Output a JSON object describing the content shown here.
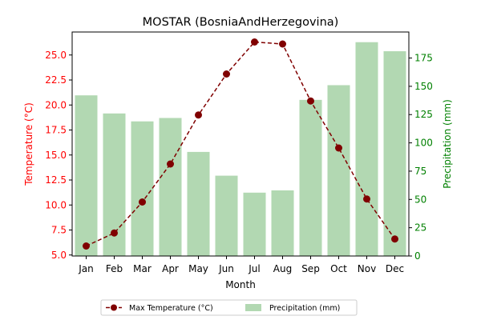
{
  "chart_data": {
    "type": "bar+line",
    "title": "MOSTAR (BosniaAndHerzegovina)",
    "xlabel": "Month",
    "ylabel_left": "Temperature (°C)",
    "ylabel_right": "Precipitation (mm)",
    "categories": [
      "Jan",
      "Feb",
      "Mar",
      "Apr",
      "May",
      "Jun",
      "Jul",
      "Aug",
      "Sep",
      "Oct",
      "Nov",
      "Dec"
    ],
    "series": [
      {
        "name": "Max Temperature (°C)",
        "type": "line",
        "axis": "left",
        "color": "#800000",
        "values": [
          5.9,
          7.2,
          10.3,
          14.1,
          19.0,
          23.1,
          26.3,
          26.1,
          20.4,
          15.7,
          10.6,
          6.6
        ]
      },
      {
        "name": "Precipitation (mm)",
        "type": "bar",
        "axis": "right",
        "color": "#b2d8b2",
        "values": [
          142,
          126,
          119,
          122,
          92,
          71,
          56,
          58,
          138,
          151,
          189,
          181
        ]
      }
    ],
    "ylim_left": [
      4.9,
      27.3
    ],
    "ylim_right": [
      0,
      198
    ],
    "yticks_left": [
      "5.0",
      "7.5",
      "10.0",
      "12.5",
      "15.0",
      "17.5",
      "20.0",
      "22.5",
      "25.0"
    ],
    "yticks_right": [
      "0",
      "25",
      "50",
      "75",
      "100",
      "125",
      "150",
      "175"
    ],
    "left_axis_color": "#ff0000",
    "right_axis_color": "#008000",
    "legend_placement": "bottom-center",
    "grid": false
  }
}
